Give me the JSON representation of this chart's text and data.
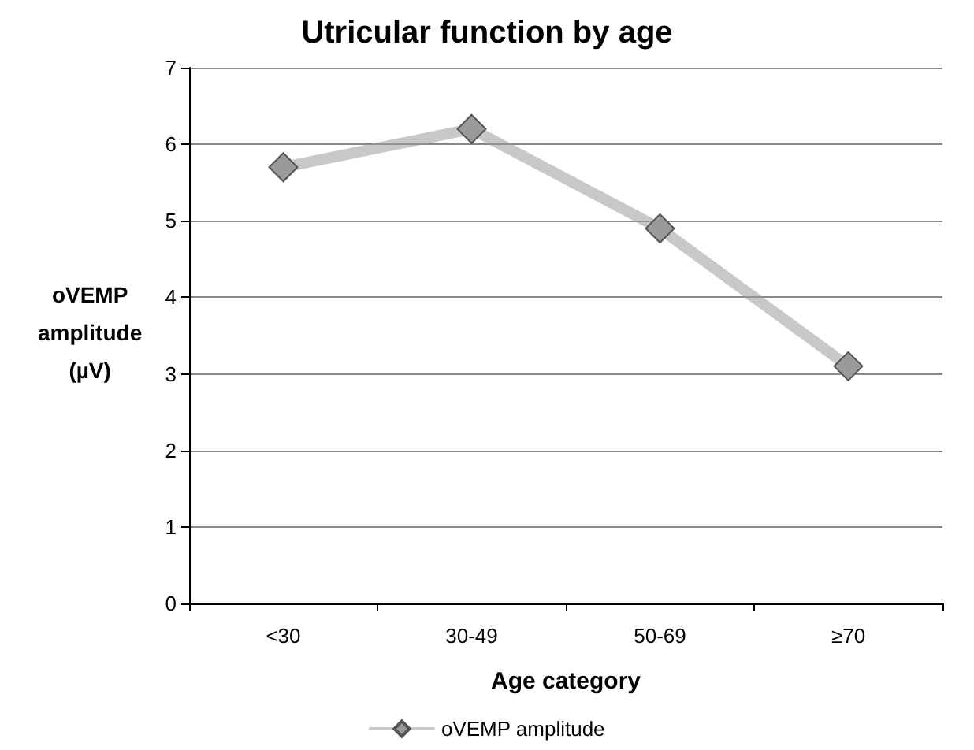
{
  "chart_data": {
    "type": "line",
    "title": "Utricular function by age",
    "xlabel": "Age category",
    "ylabel": "oVEMP amplitude (µV)",
    "categories": [
      "<30",
      "30-49",
      "50-69",
      "≥70"
    ],
    "series": [
      {
        "name": "oVEMP amplitude",
        "color": "#9a9a9a",
        "values": [
          5.7,
          6.2,
          4.9,
          3.1
        ]
      }
    ],
    "ylim": [
      0,
      7
    ],
    "yticks": [
      0,
      1,
      2,
      3,
      4,
      5,
      6,
      7
    ],
    "grid": "y",
    "legend": "bottom",
    "marker": "diamond",
    "line_style": "solid"
  }
}
